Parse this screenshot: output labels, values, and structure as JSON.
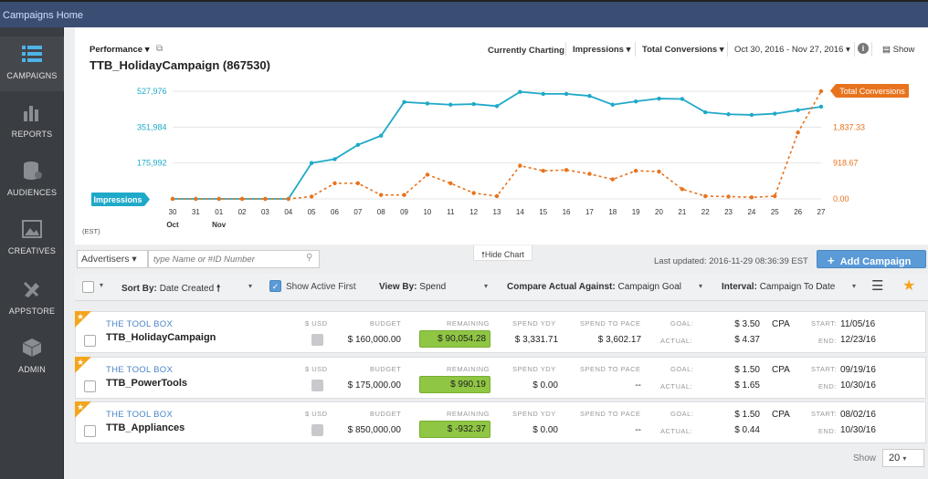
{
  "topbar": {
    "title": "Campaigns Home"
  },
  "sidebar": {
    "items": [
      {
        "label": "CAMPAIGNS",
        "icon": "campaigns-icon",
        "active": true
      },
      {
        "label": "REPORTS",
        "icon": "reports-icon"
      },
      {
        "label": "AUDIENCES",
        "icon": "audiences-icon"
      },
      {
        "label": "CREATIVES",
        "icon": "creatives-icon"
      },
      {
        "label": "APPSTORE",
        "icon": "appstore-icon"
      },
      {
        "label": "ADMIN",
        "icon": "admin-icon"
      }
    ]
  },
  "chart_header": {
    "performance_label": "Performance",
    "campaign_title": "TTB_HolidayCampaign (867530)",
    "currently_charting": "Currently Charting",
    "metric1": "Impressions",
    "metric2": "Total Conversions",
    "date_range": "Oct 30, 2016 - Nov 27, 2016",
    "show_label": "Show"
  },
  "chart_data": {
    "type": "line",
    "categories": [
      "30",
      "31",
      "01",
      "02",
      "03",
      "04",
      "05",
      "06",
      "07",
      "08",
      "09",
      "10",
      "11",
      "12",
      "13",
      "14",
      "15",
      "16",
      "17",
      "18",
      "19",
      "20",
      "21",
      "22",
      "23",
      "24",
      "25",
      "26",
      "27"
    ],
    "month_labels": [
      {
        "at": "30",
        "label": "Oct"
      },
      {
        "at": "01",
        "label": "Nov"
      }
    ],
    "timezone_label": "(EST)",
    "series": [
      {
        "name": "Impressions",
        "axis": "left",
        "color": "#1fa9c8",
        "style": "solid",
        "values": [
          0,
          0,
          0,
          0,
          0,
          0,
          175992,
          195000,
          265000,
          310000,
          475000,
          468000,
          462000,
          465000,
          455000,
          525000,
          515000,
          515000,
          505000,
          462000,
          478000,
          492000,
          490000,
          425000,
          415000,
          412000,
          418000,
          435000,
          452000
        ]
      },
      {
        "name": "Total Conversions",
        "axis": "right",
        "color": "#e8731d",
        "style": "dashed",
        "values": [
          0,
          0,
          0,
          0,
          0,
          0,
          60,
          400,
          400,
          100,
          100,
          620,
          400,
          150,
          70,
          850,
          720,
          740,
          640,
          500,
          720,
          700,
          250,
          70,
          60,
          40,
          70,
          1700,
          2756
        ]
      }
    ],
    "left_axis": {
      "ticks": [
        "527,976",
        "351,984",
        "175,992"
      ],
      "tick_values": [
        527976,
        351984,
        175992
      ],
      "ylim": [
        0,
        527976
      ]
    },
    "right_axis": {
      "ticks": [
        "1,837.33",
        "918.67",
        "0.00"
      ],
      "tick_values": [
        1837.33,
        918.67,
        0
      ],
      "ylim": [
        0,
        2756
      ]
    },
    "legend": {
      "left_tag": "Impressions",
      "right_tag": "Total Conversions"
    }
  },
  "filters": {
    "hide_chart": "Hide Chart",
    "advertisers_label": "Advertisers",
    "search_placeholder": "type Name or #ID Number",
    "last_updated": "Last updated: 2016-11-29 08:36:39 EST",
    "add_campaign": "Add Campaign"
  },
  "toolbar": {
    "sort_by_key": "Sort By:",
    "sort_by_val": "Date Created",
    "show_active": "Show Active First",
    "view_by_key": "View By:",
    "view_by_val": "Spend",
    "compare_key": "Compare Actual Against:",
    "compare_val": "Campaign Goal",
    "interval_key": "Interval:",
    "interval_val": "Campaign To Date"
  },
  "col_headers": {
    "currency": "$ USD",
    "budget": "BUDGET",
    "remaining": "REMAINING",
    "spend_yday": "SPEND YDY",
    "spend_pace": "SPEND TO PACE",
    "goal": "GOAL:",
    "actual": "ACTUAL:",
    "start": "START:",
    "end": "END:"
  },
  "campaigns": [
    {
      "advertiser": "THE TOOL BOX",
      "name": "TTB_HolidayCampaign",
      "budget": "$ 160,000.00",
      "remaining": "$ 90,054.28",
      "spend_yday": "$ 3,331.71",
      "spend_pace": "$ 3,602.17",
      "goal": "$ 3.50",
      "goal_type": "CPA",
      "actual": "$ 4.37",
      "start": "11/05/16",
      "end": "12/23/16"
    },
    {
      "advertiser": "THE TOOL BOX",
      "name": "TTB_PowerTools",
      "budget": "$ 175,000.00",
      "remaining": "$ 990.19",
      "spend_yday": "$ 0.00",
      "spend_pace": "--",
      "goal": "$ 1.50",
      "goal_type": "CPA",
      "actual": "$ 1.65",
      "start": "09/19/16",
      "end": "10/30/16"
    },
    {
      "advertiser": "THE TOOL BOX",
      "name": "TTB_Appliances",
      "budget": "$ 850,000.00",
      "remaining": "$ -932.37",
      "spend_yday": "$ 0.00",
      "spend_pace": "--",
      "goal": "$ 1.50",
      "goal_type": "CPA",
      "actual": "$ 0.44",
      "start": "08/02/16",
      "end": "10/30/16"
    }
  ],
  "pager": {
    "show_label": "Show",
    "page_size": "20"
  }
}
